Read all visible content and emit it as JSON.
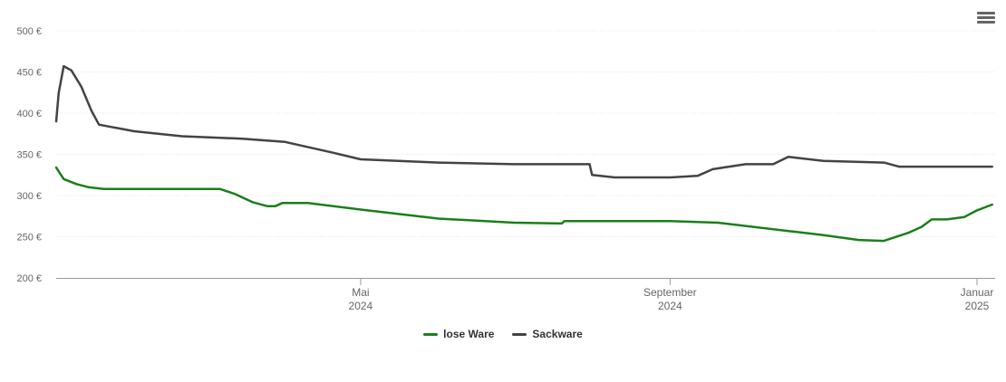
{
  "chart_data": {
    "type": "line",
    "ylim": [
      200,
      500
    ],
    "y_ticks": [
      {
        "value": 200,
        "label": "200 €"
      },
      {
        "value": 250,
        "label": "250 €"
      },
      {
        "value": 300,
        "label": "300 €"
      },
      {
        "value": 350,
        "label": "350 €"
      },
      {
        "value": 400,
        "label": "400 €"
      },
      {
        "value": 450,
        "label": "450 €"
      },
      {
        "value": 500,
        "label": "500 €"
      }
    ],
    "x_range": [
      "2024-01-01",
      "2025-01-01"
    ],
    "x_ticks": [
      {
        "date": "2024-05-01",
        "month": "Mai",
        "year": "2024"
      },
      {
        "date": "2024-09-01",
        "month": "September",
        "year": "2024"
      },
      {
        "date": "2025-01-01",
        "month": "Januar",
        "year": "2025"
      }
    ],
    "grid": true,
    "legend_position": "bottom-center",
    "series": [
      {
        "name": "lose Ware",
        "color": "#1a7f1a",
        "points": [
          [
            "2024-01-01",
            334
          ],
          [
            "2024-01-04",
            320
          ],
          [
            "2024-01-09",
            314
          ],
          [
            "2024-01-14",
            310
          ],
          [
            "2024-01-20",
            308
          ],
          [
            "2024-02-01",
            308
          ],
          [
            "2024-02-15",
            308
          ],
          [
            "2024-03-01",
            308
          ],
          [
            "2024-03-06",
            308
          ],
          [
            "2024-03-12",
            302
          ],
          [
            "2024-03-19",
            292
          ],
          [
            "2024-03-25",
            287
          ],
          [
            "2024-03-28",
            287
          ],
          [
            "2024-03-31",
            291
          ],
          [
            "2024-04-10",
            291
          ],
          [
            "2024-05-01",
            283
          ],
          [
            "2024-06-01",
            272
          ],
          [
            "2024-07-01",
            267
          ],
          [
            "2024-07-20",
            266
          ],
          [
            "2024-07-21",
            269
          ],
          [
            "2024-08-15",
            269
          ],
          [
            "2024-09-01",
            269
          ],
          [
            "2024-09-20",
            267
          ],
          [
            "2024-10-15",
            258
          ],
          [
            "2024-11-01",
            252
          ],
          [
            "2024-11-15",
            246
          ],
          [
            "2024-11-25",
            245
          ],
          [
            "2024-12-05",
            255
          ],
          [
            "2024-12-10",
            262
          ],
          [
            "2024-12-14",
            271
          ],
          [
            "2024-12-20",
            271
          ],
          [
            "2024-12-27",
            274
          ],
          [
            "2025-01-01",
            282
          ],
          [
            "2025-01-07",
            289
          ]
        ]
      },
      {
        "name": "Sackware",
        "color": "#434348",
        "points": [
          [
            "2024-01-01",
            390
          ],
          [
            "2024-01-02",
            425
          ],
          [
            "2024-01-04",
            457
          ],
          [
            "2024-01-07",
            452
          ],
          [
            "2024-01-11",
            432
          ],
          [
            "2024-01-15",
            403
          ],
          [
            "2024-01-18",
            386
          ],
          [
            "2024-02-01",
            378
          ],
          [
            "2024-02-20",
            372
          ],
          [
            "2024-03-15",
            369
          ],
          [
            "2024-04-01",
            365
          ],
          [
            "2024-04-20",
            352
          ],
          [
            "2024-05-01",
            344
          ],
          [
            "2024-06-01",
            340
          ],
          [
            "2024-07-01",
            338
          ],
          [
            "2024-07-31",
            338
          ],
          [
            "2024-08-01",
            325
          ],
          [
            "2024-08-10",
            322
          ],
          [
            "2024-09-01",
            322
          ],
          [
            "2024-09-12",
            324
          ],
          [
            "2024-09-18",
            332
          ],
          [
            "2024-10-01",
            338
          ],
          [
            "2024-10-12",
            338
          ],
          [
            "2024-10-18",
            347
          ],
          [
            "2024-11-01",
            342
          ],
          [
            "2024-11-25",
            340
          ],
          [
            "2024-12-01",
            335
          ],
          [
            "2025-01-07",
            335
          ]
        ]
      }
    ]
  }
}
